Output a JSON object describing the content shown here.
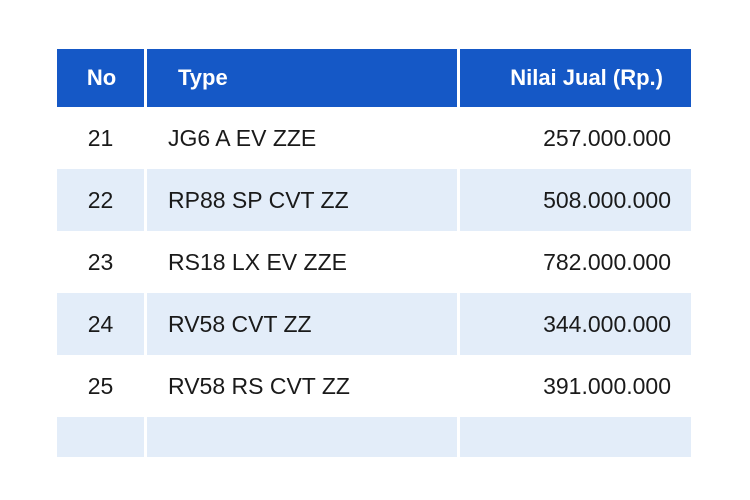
{
  "table": {
    "headers": {
      "no": "No",
      "type": "Type",
      "value": "Nilai Jual (Rp.)"
    },
    "rows": [
      {
        "no": "21",
        "type": "JG6 A EV ZZE",
        "value": "257.000.000"
      },
      {
        "no": "22",
        "type": "RP88 SP CVT ZZ",
        "value": "508.000.000"
      },
      {
        "no": "23",
        "type": "RS18 LX EV ZZE",
        "value": "782.000.000"
      },
      {
        "no": "24",
        "type": "RV58 CVT ZZ",
        "value": "344.000.000"
      },
      {
        "no": "25",
        "type": "RV58 RS CVT ZZ",
        "value": "391.000.000"
      }
    ]
  },
  "colors": {
    "header_bg": "#1558c6",
    "header_text": "#ffffff",
    "row_alt_bg": "#e3edf9",
    "row_plain_bg": "#ffffff",
    "body_text": "#1a1a1a"
  }
}
